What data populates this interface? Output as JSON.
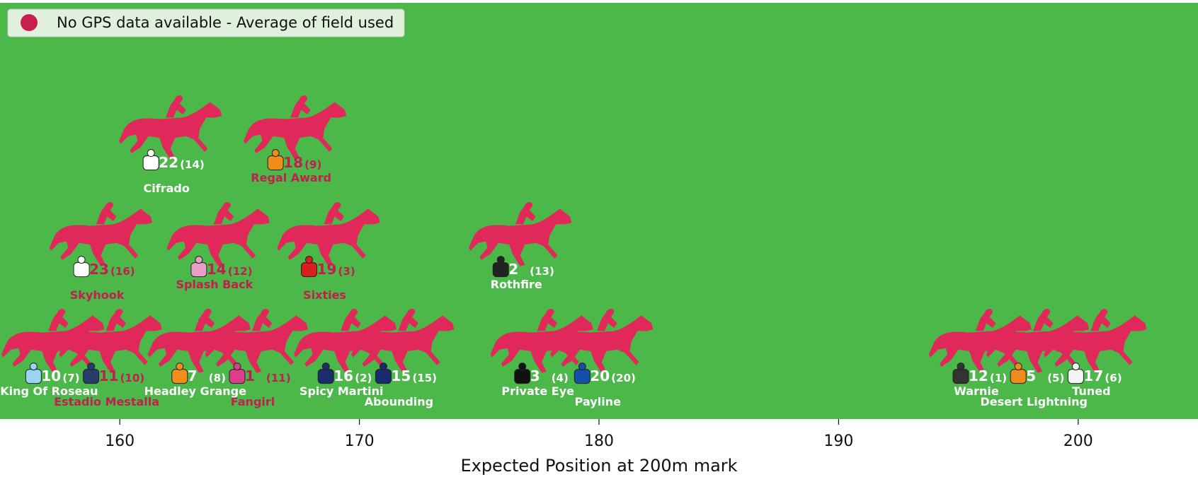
{
  "chart_data": {
    "type": "scatter",
    "xlabel": "Expected Position at 200m mark",
    "xlim": [
      155,
      205
    ],
    "xticks": [
      160,
      170,
      180,
      190,
      200
    ],
    "ylim": [
      0.6,
      4.5
    ],
    "background": "#4cb84a",
    "marker_color": "#e0285a",
    "legend": {
      "label": "No GPS data available - Average of field used",
      "color": "#c8204e",
      "loc": "upper left"
    },
    "points": [
      {
        "number": 22,
        "barrier": "(14)",
        "name": "Cifrado",
        "x": 161.3,
        "y": 3,
        "label_color": "#ffffff",
        "silk": "#ffffff"
      },
      {
        "number": 18,
        "barrier": "(9)",
        "name": "Regal Award",
        "x": 166.5,
        "y": 3,
        "label_color": "#c0204e",
        "silk": "#f08c1a"
      },
      {
        "number": 23,
        "barrier": "(16)",
        "name": "Skyhook",
        "x": 158.4,
        "y": 2,
        "label_color": "#c0204e",
        "silk": "#ffffff"
      },
      {
        "number": 14,
        "barrier": "(12)",
        "name": "Splash Back",
        "x": 163.3,
        "y": 2,
        "label_color": "#c0204e",
        "silk": "#e8a0c8"
      },
      {
        "number": 19,
        "barrier": "(3)",
        "name": "Sixties",
        "x": 167.9,
        "y": 2,
        "label_color": "#c0204e",
        "silk": "#d81e1e"
      },
      {
        "number": 2,
        "barrier": "(13)",
        "name": "Rothfire",
        "x": 175.9,
        "y": 2,
        "label_color": "#ffffff",
        "silk": "#222222"
      },
      {
        "number": 10,
        "barrier": "(7)",
        "name": "King Of Roseau",
        "x": 156.4,
        "y": 1,
        "label_color": "#ffffff",
        "silk": "#9ad4f0"
      },
      {
        "number": 11,
        "barrier": "(10)",
        "name": "Estadio Mestalla",
        "x": 158.8,
        "y": 1,
        "label_color": "#c0204e",
        "silk": "#2a3c6c"
      },
      {
        "number": 7,
        "barrier": "(8)",
        "name": "Headley Grange",
        "x": 162.5,
        "y": 1,
        "label_color": "#ffffff",
        "silk": "#f0901a"
      },
      {
        "number": 1,
        "barrier": "(11)",
        "name": "Fangirl",
        "x": 164.9,
        "y": 1,
        "label_color": "#c0204e",
        "silk": "#e03c8c"
      },
      {
        "number": 16,
        "barrier": "(2)",
        "name": "Spicy Martini",
        "x": 168.6,
        "y": 1,
        "label_color": "#ffffff",
        "silk": "#1c2c6c"
      },
      {
        "number": 15,
        "barrier": "(15)",
        "name": "Abounding",
        "x": 171.0,
        "y": 1,
        "label_color": "#ffffff",
        "silk": "#1a2a70"
      },
      {
        "number": 3,
        "barrier": "(4)",
        "name": "Private Eye",
        "x": 176.8,
        "y": 1,
        "label_color": "#ffffff",
        "silk": "#111111"
      },
      {
        "number": 20,
        "barrier": "(20)",
        "name": "Payline",
        "x": 179.3,
        "y": 1,
        "label_color": "#ffffff",
        "silk": "#1450a8"
      },
      {
        "number": 12,
        "barrier": "(1)",
        "name": "Warnie",
        "x": 195.1,
        "y": 1,
        "label_color": "#ffffff",
        "silk": "#333333"
      },
      {
        "number": 5,
        "barrier": "(5)",
        "name": "Desert Lightning",
        "x": 197.5,
        "y": 1,
        "label_color": "#ffffff",
        "silk": "#f08a1a"
      },
      {
        "number": 17,
        "barrier": "(6)",
        "name": "Tuned",
        "x": 199.9,
        "y": 1,
        "label_color": "#ffffff",
        "silk": "#f4f4f4"
      }
    ]
  }
}
